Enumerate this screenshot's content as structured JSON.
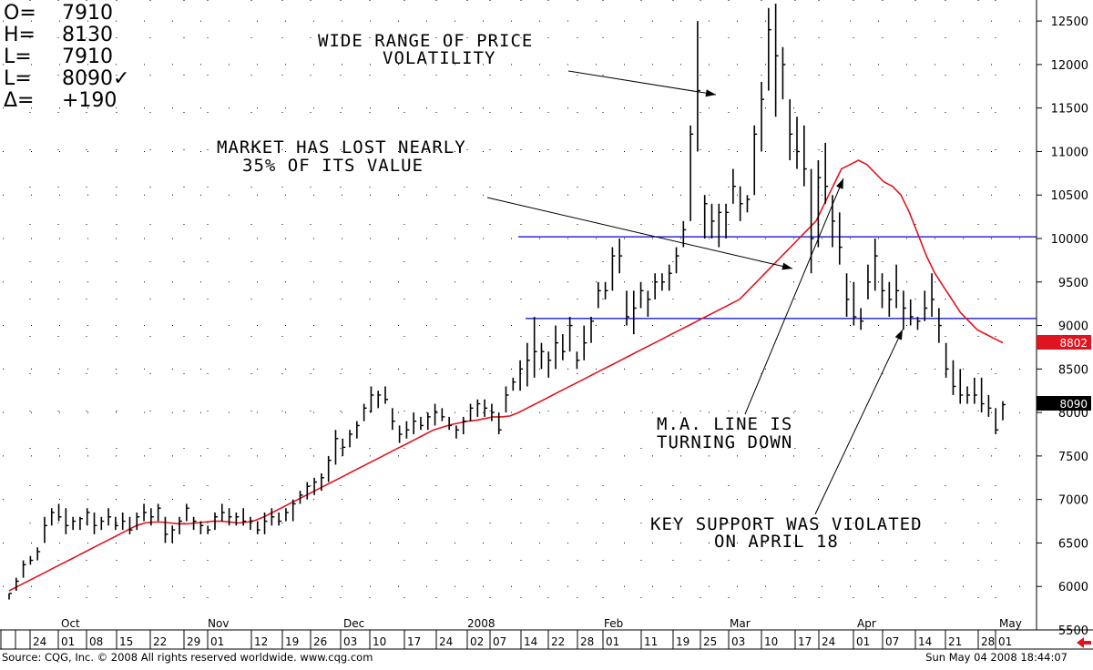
{
  "header": {
    "readout": [
      {
        "label": "O=",
        "value": "7910"
      },
      {
        "label": "H=",
        "value": "8130"
      },
      {
        "label": "L=",
        "value": "7910"
      },
      {
        "label": "L=",
        "value": "8090✓"
      },
      {
        "label": "Δ=",
        "value": "+190"
      }
    ]
  },
  "annotations": {
    "volatility": [
      "WIDE RANGE OF PRICE",
      "VOLATILITY"
    ],
    "lost_value": [
      "MARKET HAS LOST NEARLY",
      "35% OF ITS VALUE"
    ],
    "ma_turning": [
      "M.A. LINE IS",
      "TURNING DOWN"
    ],
    "key_support": [
      "KEY SUPPORT WAS VIOLATED",
      "ON APRIL 18"
    ]
  },
  "footer": {
    "source": "Source: CQG, Inc. © 2008 All rights reserved worldwide. www.cqg.com",
    "timestamp": "Sun May 04 2008 18:44:07"
  },
  "colors": {
    "price_bars": "#000000",
    "moving_average": "#e0141e",
    "support_lines": "#0000cc",
    "last_price_box": "#000000",
    "ma_value_box": "#e0141e",
    "nav_arrow": "#e0141e"
  },
  "chart_data": {
    "type": "ohlc",
    "ylim": [
      5500,
      12700
    ],
    "yticks": [
      5500,
      6000,
      6500,
      7000,
      7500,
      8000,
      8500,
      9000,
      9500,
      10000,
      10500,
      11000,
      11500,
      12000,
      12500
    ],
    "grid": true,
    "x_tick_labels": [
      "24",
      "01",
      "08",
      "15",
      "22",
      "29",
      "01",
      "12",
      "19",
      "26",
      "03",
      "10",
      "17",
      "24",
      "02",
      "07",
      "14",
      "22",
      "28",
      "01",
      "11",
      "19",
      "25",
      "03",
      "10",
      "17",
      "24",
      "01",
      "07",
      "14",
      "21",
      "28",
      "01"
    ],
    "month_labels": [
      "Oct",
      "Nov",
      "Dec",
      "2008",
      "Feb",
      "Mar",
      "Apr",
      "May"
    ],
    "last_price": "8090",
    "moving_average_last": "8802",
    "horizontal_lines": [
      10020,
      9080
    ],
    "bars": [
      [
        5920,
        5850,
        5920
      ],
      [
        6100,
        5950,
        6060
      ],
      [
        6300,
        6100,
        6250
      ],
      [
        6350,
        6250,
        6300
      ],
      [
        6450,
        6300,
        6400
      ],
      [
        6800,
        6500,
        6700
      ],
      [
        6900,
        6700,
        6850
      ],
      [
        6950,
        6750,
        6800
      ],
      [
        6900,
        6600,
        6700
      ],
      [
        6800,
        6650,
        6750
      ],
      [
        6800,
        6650,
        6780
      ],
      [
        6900,
        6700,
        6850
      ],
      [
        6850,
        6600,
        6700
      ],
      [
        6800,
        6650,
        6750
      ],
      [
        6900,
        6700,
        6800
      ],
      [
        6800,
        6650,
        6700
      ],
      [
        6850,
        6650,
        6750
      ],
      [
        6800,
        6600,
        6650
      ],
      [
        6850,
        6650,
        6800
      ],
      [
        6950,
        6750,
        6850
      ],
      [
        6900,
        6700,
        6800
      ],
      [
        6950,
        6750,
        6900
      ],
      [
        6800,
        6500,
        6600
      ],
      [
        6700,
        6500,
        6650
      ],
      [
        6800,
        6600,
        6750
      ],
      [
        6950,
        6750,
        6900
      ],
      [
        6800,
        6650,
        6750
      ],
      [
        6750,
        6600,
        6700
      ],
      [
        6700,
        6600,
        6650
      ],
      [
        6850,
        6650,
        6800
      ],
      [
        6950,
        6750,
        6850
      ],
      [
        6900,
        6700,
        6800
      ],
      [
        6850,
        6700,
        6800
      ],
      [
        6900,
        6700,
        6750
      ],
      [
        6800,
        6650,
        6750
      ],
      [
        6750,
        6600,
        6650
      ],
      [
        6850,
        6600,
        6750
      ],
      [
        6900,
        6700,
        6800
      ],
      [
        6850,
        6700,
        6750
      ],
      [
        6900,
        6750,
        6850
      ],
      [
        7000,
        6750,
        6950
      ],
      [
        7100,
        6950,
        7050
      ],
      [
        7200,
        7000,
        7150
      ],
      [
        7250,
        7050,
        7200
      ],
      [
        7300,
        7100,
        7250
      ],
      [
        7500,
        7200,
        7450
      ],
      [
        7800,
        7400,
        7700
      ],
      [
        7700,
        7500,
        7600
      ],
      [
        7800,
        7600,
        7750
      ],
      [
        7900,
        7700,
        7850
      ],
      [
        8100,
        7900,
        8050
      ],
      [
        8300,
        8000,
        8200
      ],
      [
        8250,
        8050,
        8200
      ],
      [
        8300,
        8100,
        8150
      ],
      [
        8050,
        7800,
        7900
      ],
      [
        7850,
        7650,
        7750
      ],
      [
        7900,
        7700,
        7800
      ],
      [
        8000,
        7750,
        7900
      ],
      [
        7950,
        7800,
        7850
      ],
      [
        8000,
        7800,
        7950
      ],
      [
        8100,
        7850,
        8000
      ],
      [
        8050,
        7900,
        7950
      ],
      [
        7950,
        7800,
        7850
      ],
      [
        7850,
        7700,
        7800
      ],
      [
        7950,
        7750,
        7900
      ],
      [
        8100,
        7900,
        8050
      ],
      [
        8150,
        7950,
        8100
      ],
      [
        8150,
        7950,
        8050
      ],
      [
        8100,
        7900,
        8000
      ],
      [
        8000,
        7750,
        7800
      ],
      [
        8300,
        8000,
        8200
      ],
      [
        8400,
        8250,
        8350
      ],
      [
        8600,
        8250,
        8500
      ],
      [
        8800,
        8300,
        8600
      ],
      [
        9100,
        8400,
        8700
      ],
      [
        8800,
        8500,
        8700
      ],
      [
        8700,
        8400,
        8600
      ],
      [
        9000,
        8500,
        8800
      ],
      [
        8900,
        8600,
        8700
      ],
      [
        9100,
        8700,
        9000
      ],
      [
        8700,
        8500,
        8600
      ],
      [
        9000,
        8600,
        8800
      ],
      [
        9100,
        8800,
        9050
      ],
      [
        9500,
        9200,
        9400
      ],
      [
        9500,
        9300,
        9400
      ],
      [
        9900,
        9400,
        9800
      ],
      [
        10000,
        9600,
        9800
      ],
      [
        9400,
        9000,
        9100
      ],
      [
        9400,
        8900,
        9200
      ],
      [
        9500,
        9200,
        9400
      ],
      [
        9400,
        9100,
        9300
      ],
      [
        9600,
        9300,
        9500
      ],
      [
        9600,
        9400,
        9500
      ],
      [
        9700,
        9400,
        9600
      ],
      [
        9900,
        9600,
        9800
      ],
      [
        10200,
        9900,
        10100
      ],
      [
        11300,
        10200,
        11200
      ],
      [
        12500,
        11000,
        11700
      ],
      [
        10500,
        10000,
        10400
      ],
      [
        10400,
        10000,
        10200
      ],
      [
        10400,
        9900,
        10300
      ],
      [
        10400,
        10000,
        10300
      ],
      [
        10800,
        10400,
        10600
      ],
      [
        10600,
        10200,
        10400
      ],
      [
        10500,
        10300,
        10450
      ],
      [
        11300,
        10500,
        11200
      ],
      [
        11800,
        11000,
        11600
      ],
      [
        12650,
        11700,
        12400
      ],
      [
        12700,
        11400,
        12100
      ],
      [
        12200,
        11600,
        12000
      ],
      [
        11600,
        10900,
        11200
      ],
      [
        11400,
        10800,
        11000
      ],
      [
        11300,
        10600,
        10800
      ],
      [
        10800,
        9600,
        10000
      ],
      [
        10900,
        9900,
        10700
      ],
      [
        11100,
        10400,
        10600
      ],
      [
        10500,
        9900,
        10200
      ],
      [
        10300,
        9700,
        9900
      ],
      [
        9600,
        9100,
        9300
      ],
      [
        9500,
        9000,
        9100
      ],
      [
        9200,
        8950,
        9050
      ],
      [
        9700,
        9300,
        9500
      ],
      [
        10000,
        9400,
        9800
      ],
      [
        9600,
        9200,
        9400
      ],
      [
        9500,
        9100,
        9300
      ],
      [
        9700,
        9200,
        9400
      ],
      [
        9400,
        8950,
        9200
      ],
      [
        9300,
        9000,
        9100
      ],
      [
        9100,
        8950,
        9050
      ],
      [
        9400,
        9050,
        9200
      ],
      [
        9600,
        9100,
        9300
      ],
      [
        9200,
        8800,
        9000
      ],
      [
        8800,
        8400,
        8500
      ],
      [
        8600,
        8200,
        8300
      ],
      [
        8500,
        8100,
        8200
      ],
      [
        8300,
        8100,
        8200
      ],
      [
        8400,
        8100,
        8200
      ],
      [
        8400,
        8000,
        8100
      ],
      [
        8200,
        7950,
        8050
      ],
      [
        8050,
        7750,
        7800
      ],
      [
        8130,
        7910,
        8090
      ]
    ],
    "moving_average": [
      5950,
      6000,
      6050,
      6100,
      6150,
      6200,
      6250,
      6300,
      6350,
      6400,
      6450,
      6500,
      6550,
      6600,
      6650,
      6700,
      6730,
      6740,
      6740,
      6730,
      6720,
      6720,
      6730,
      6740,
      6750,
      6750,
      6740,
      6730,
      6740,
      6760,
      6800,
      6850,
      6900,
      6950,
      7000,
      7050,
      7100,
      7150,
      7200,
      7250,
      7300,
      7350,
      7400,
      7450,
      7500,
      7550,
      7600,
      7650,
      7700,
      7750,
      7800,
      7830,
      7860,
      7880,
      7900,
      7910,
      7930,
      7950,
      7950,
      7960,
      8000,
      8050,
      8100,
      8150,
      8200,
      8250,
      8300,
      8350,
      8400,
      8450,
      8500,
      8550,
      8600,
      8650,
      8700,
      8750,
      8800,
      8850,
      8900,
      8950,
      9000,
      9050,
      9100,
      9150,
      9200,
      9250,
      9300,
      9400,
      9500,
      9600,
      9700,
      9800,
      9900,
      10000,
      10100,
      10200,
      10400,
      10600,
      10800,
      10850,
      10900,
      10850,
      10750,
      10650,
      10600,
      10500,
      10300,
      10050,
      9800,
      9600,
      9450,
      9300,
      9150,
      9050,
      8950,
      8900,
      8850,
      8802
    ]
  }
}
